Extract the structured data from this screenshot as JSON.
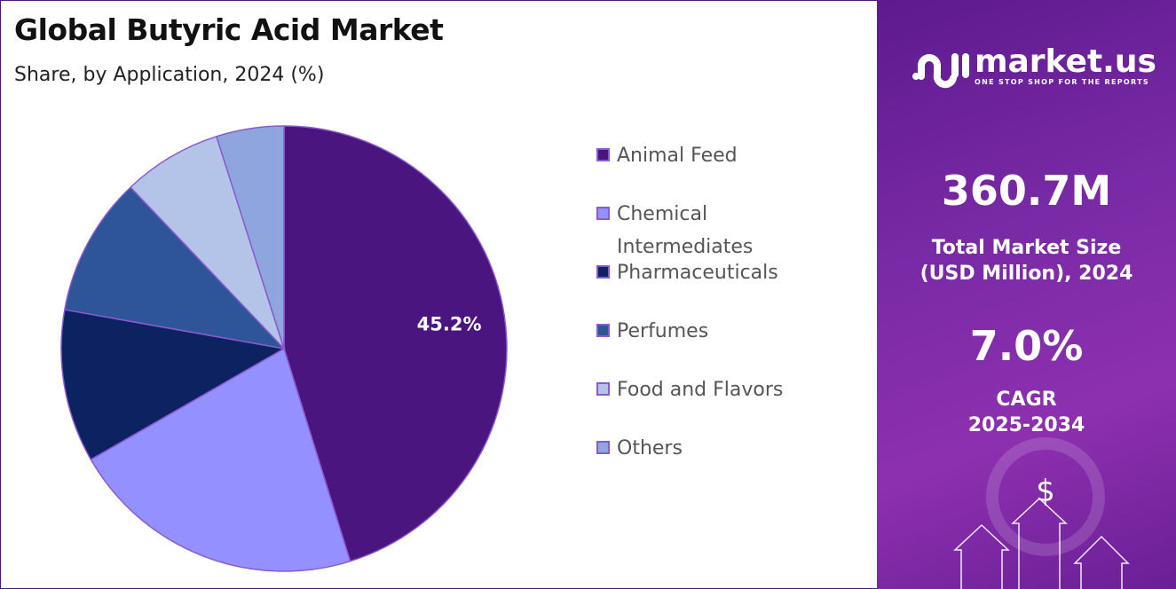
{
  "header": {
    "title": "Global Butyric Acid Market",
    "subtitle": "Share, by Application, 2024 (%)"
  },
  "chart_data": {
    "type": "pie",
    "title": "Global Butyric Acid Market",
    "subtitle": "Share, by Application, 2024 (%)",
    "categories": [
      "Animal Feed",
      "Chemical Intermediates",
      "Pharmaceuticals",
      "Perfumes",
      "Food and Flavors",
      "Others"
    ],
    "values": [
      45.2,
      21.5,
      11.1,
      10.1,
      7.2,
      4.9
    ],
    "colors": [
      "#4b1580",
      "#9490ff",
      "#0d2260",
      "#2e5597",
      "#b4c3e8",
      "#8ea6dd"
    ],
    "data_labels": [
      "45.2%",
      "",
      "",
      "",
      "",
      ""
    ],
    "legend_position": "right"
  },
  "legend": {
    "items": [
      {
        "label": "Animal Feed"
      },
      {
        "label": "Chemical Intermediates"
      },
      {
        "label": "Pharmaceuticals"
      },
      {
        "label": "Perfumes"
      },
      {
        "label": "Food and Flavors"
      },
      {
        "label": "Others"
      }
    ]
  },
  "sidebar": {
    "logo_text": "market.us",
    "logo_tagline": "ONE STOP SHOP FOR THE REPORTS",
    "market_size": "360.7M",
    "market_size_label": "Total Market Size (USD Million), 2024",
    "cagr": "7.0%",
    "cagr_label": "CAGR 2025-2034",
    "background_color": "#7a2aa6"
  }
}
